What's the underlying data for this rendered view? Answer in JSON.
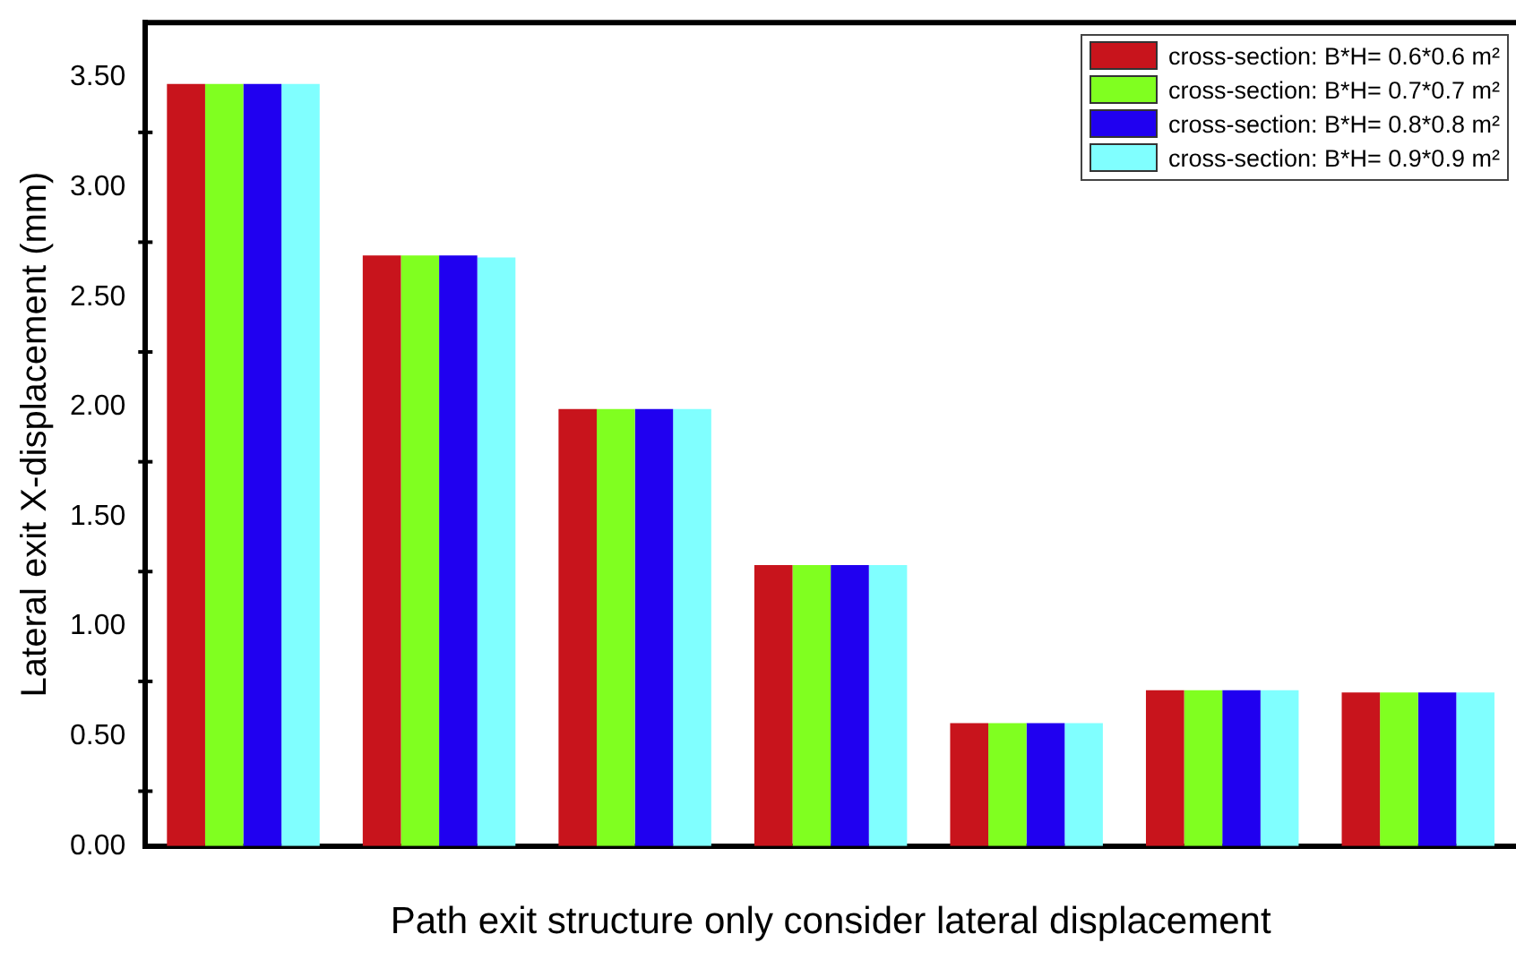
{
  "chart_data": {
    "type": "bar",
    "xlabel": "Path exit structure only consider lateral displacement",
    "ylabel": "Lateral exit X-displacement (mm)",
    "categories": [
      null,
      null,
      null,
      null,
      null,
      null,
      null
    ],
    "series": [
      {
        "name": "cross-section: B*H= 0.6*0.6 m²",
        "color": "#c8141c",
        "values": [
          3.47,
          2.69,
          1.99,
          1.28,
          0.56,
          0.71,
          0.7
        ]
      },
      {
        "name": "cross-section: B*H= 0.7*0.7 m²",
        "color": "#80ff20",
        "values": [
          3.47,
          2.69,
          1.99,
          1.28,
          0.56,
          0.71,
          0.7
        ]
      },
      {
        "name": "cross-section: B*H= 0.8*0.8 m²",
        "color": "#2000f0",
        "values": [
          3.47,
          2.69,
          1.99,
          1.28,
          0.56,
          0.71,
          0.7
        ]
      },
      {
        "name": "cross-section: B*H= 0.9*0.9 m²",
        "color": "#80ffff",
        "values": [
          3.47,
          2.68,
          1.99,
          1.28,
          0.56,
          0.71,
          0.7
        ]
      }
    ],
    "ylim": [
      0,
      3.75
    ],
    "yticks": [
      {
        "value": 0,
        "label": "0.00"
      },
      {
        "value": 0.5,
        "label": "0.50"
      },
      {
        "value": 1,
        "label": "1.00"
      },
      {
        "value": 1.5,
        "label": "1.50"
      },
      {
        "value": 2,
        "label": "2.00"
      },
      {
        "value": 2.5,
        "label": "2.50"
      },
      {
        "value": 3,
        "label": "3.00"
      },
      {
        "value": 3.5,
        "label": "3.50"
      }
    ],
    "grid": false,
    "legend": "top right"
  }
}
